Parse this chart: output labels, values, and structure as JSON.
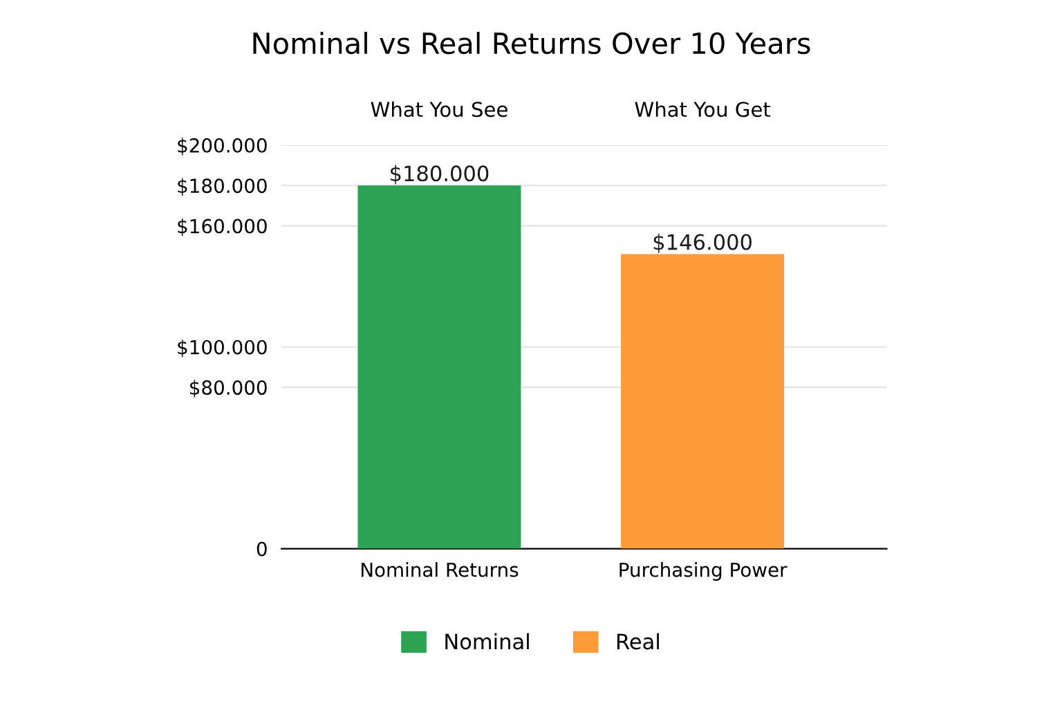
{
  "chart_data": {
    "type": "bar",
    "title": "Nominal vs Real Returns Over 10 Years",
    "annotations": [
      "What You See",
      "What You Get"
    ],
    "categories": [
      "Nominal Returns",
      "Purchasing Power"
    ],
    "series": [
      {
        "name": "Nominal",
        "color": "#2ca453",
        "values": [
          180000,
          null
        ]
      },
      {
        "name": "Real",
        "color": "#ff9c3a",
        "values": [
          null,
          146000
        ]
      }
    ],
    "ylim": [
      0,
      200000
    ],
    "yticks": [
      0,
      {
        "value": 80000,
        "label": "$80.000"
      },
      {
        "value": 100000,
        "label": "$100.000"
      },
      {
        "value": 160000,
        "label": "$160.000"
      },
      {
        "value": 180000,
        "label": "$180.000"
      },
      {
        "value": 200000,
        "label": "$200.000"
      }
    ],
    "value_labels": [
      "$180.000",
      "$146.000"
    ],
    "grid": "y",
    "legend": "bottom"
  }
}
